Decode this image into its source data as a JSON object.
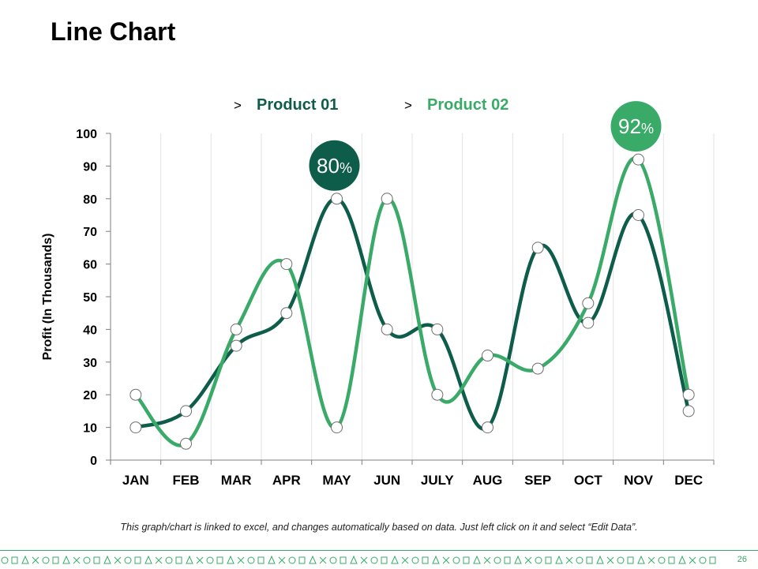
{
  "page": {
    "title": "Line Chart",
    "footnote": "This graph/chart is linked to excel, and changes automatically based on data. Just left click on it and select “Edit Data”.",
    "page_number": "26"
  },
  "colors": {
    "product_01": "#0e5c4a",
    "product_02": "#3aaa68",
    "grid": "#e3e3e3",
    "axis": "#7f7f7f",
    "marker_fill": "#ffffff"
  },
  "chart_data": {
    "type": "line",
    "title": "",
    "xlabel": "",
    "ylabel": "Profit  (In Thousands)",
    "categories": [
      "JAN",
      "FEB",
      "MAR",
      "APR",
      "MAY",
      "JUN",
      "JULY",
      "AUG",
      "SEP",
      "OCT",
      "NOV",
      "DEC"
    ],
    "ylim": [
      0,
      100
    ],
    "yticks": [
      0,
      10,
      20,
      30,
      40,
      50,
      60,
      70,
      80,
      90,
      100
    ],
    "grid": "vertical",
    "legend_position": "top",
    "legend_marker": ">",
    "series": [
      {
        "name": "Product 01",
        "color": "#0e5c4a",
        "values": [
          10,
          15,
          35,
          45,
          80,
          40,
          40,
          10,
          65,
          42,
          75,
          15
        ]
      },
      {
        "name": "Product 02",
        "color": "#3aaa68",
        "values": [
          20,
          5,
          40,
          60,
          10,
          80,
          20,
          32,
          28,
          48,
          92,
          20
        ]
      }
    ],
    "callouts": [
      {
        "series": 0,
        "category": "MAY",
        "value": "80",
        "unit": "%"
      },
      {
        "series": 1,
        "category": "NOV",
        "value": "92",
        "unit": "%"
      }
    ]
  }
}
